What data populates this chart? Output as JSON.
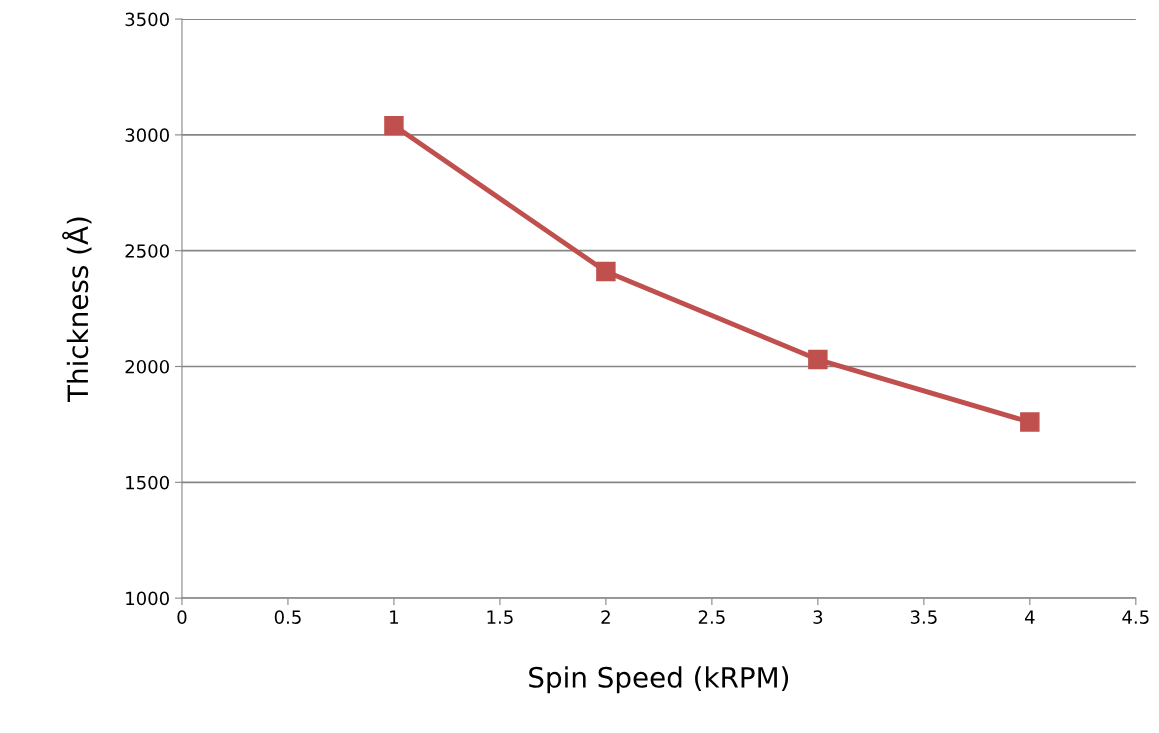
{
  "chart_data": {
    "type": "line",
    "xlabel": "Spin Speed (kRPM)",
    "ylabel": "Thickness (Å)",
    "x": [
      1,
      2,
      3,
      4
    ],
    "series": [
      {
        "color": "#c0504d",
        "values": [
          3040,
          2410,
          2030,
          1760
        ]
      }
    ],
    "xlim": [
      0,
      4.5
    ],
    "xticks": [
      0,
      0.5,
      1,
      1.5,
      2,
      2.5,
      3,
      3.5,
      4,
      4.5
    ],
    "ylim": [
      1000,
      3500
    ],
    "yticks": [
      1000,
      1500,
      2000,
      2500,
      3000,
      3500
    ],
    "grid": "y",
    "marker": "square",
    "line_style": "solid"
  }
}
